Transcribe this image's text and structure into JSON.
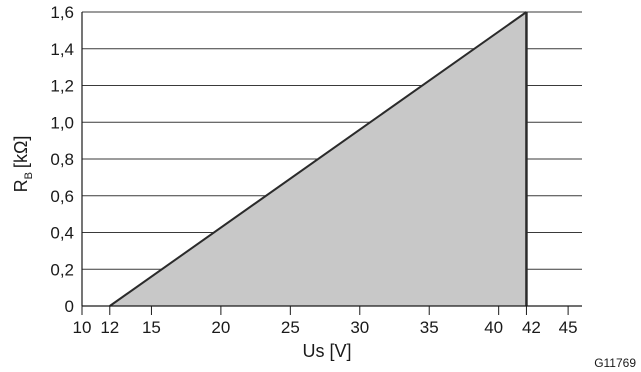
{
  "chart_data": {
    "type": "area",
    "xlabel": "Us [V]",
    "ylabel_main": "R",
    "ylabel_sub": "B",
    "ylabel_unit": "[kΩ]",
    "figure_code": "G11769",
    "x_range": [
      10,
      46
    ],
    "y_range": [
      0,
      1.6
    ],
    "grid": "horizontal",
    "x_ticks": [
      {
        "value": 10,
        "label": "10"
      },
      {
        "value": 12,
        "label": "12"
      },
      {
        "value": 15,
        "label": "15"
      },
      {
        "value": 20,
        "label": "20"
      },
      {
        "value": 25,
        "label": "25"
      },
      {
        "value": 30,
        "label": "30"
      },
      {
        "value": 35,
        "label": "35"
      },
      {
        "value": 40,
        "label": "40"
      },
      {
        "value": 42,
        "label": "42"
      },
      {
        "value": 45,
        "label": "45"
      }
    ],
    "y_ticks": [
      {
        "value": 0,
        "label": "0"
      },
      {
        "value": 0.2,
        "label": "0,2"
      },
      {
        "value": 0.4,
        "label": "0,4"
      },
      {
        "value": 0.6,
        "label": "0,6"
      },
      {
        "value": 0.8,
        "label": "0,8"
      },
      {
        "value": 1.0,
        "label": "1,0"
      },
      {
        "value": 1.2,
        "label": "1,2"
      },
      {
        "value": 1.4,
        "label": "1,4"
      },
      {
        "value": 1.6,
        "label": "1,6"
      }
    ],
    "region": {
      "points": [
        {
          "x": 12,
          "y": 0
        },
        {
          "x": 42,
          "y": 1.6
        },
        {
          "x": 42,
          "y": 0
        }
      ],
      "fill": "#c8c8c8",
      "stroke": "#2b2b2b"
    },
    "colors": {
      "grid": "#3a3a3a",
      "axis": "#1a1a1a"
    }
  }
}
